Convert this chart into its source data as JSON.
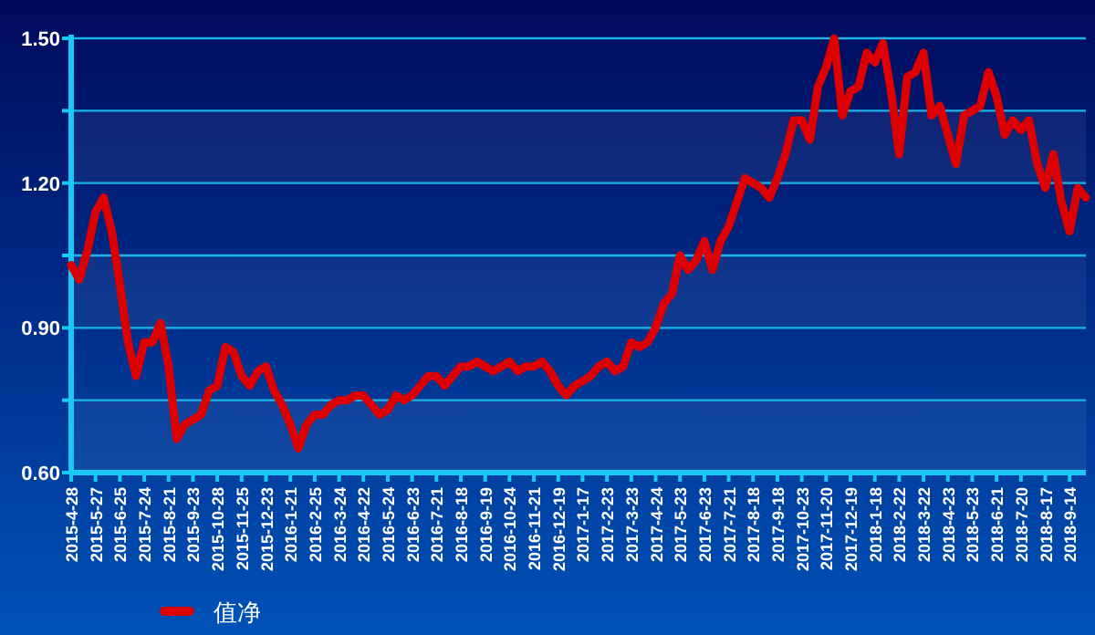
{
  "chart_data": {
    "type": "line",
    "categories": [
      "2015-4-28",
      null,
      null,
      "2015-5-27",
      null,
      null,
      "2015-6-25",
      null,
      null,
      "2015-7-24",
      null,
      null,
      "2015-8-21",
      null,
      null,
      "2015-9-23",
      null,
      null,
      "2015-10-28",
      null,
      null,
      "2015-11-25",
      null,
      null,
      "2015-12-23",
      null,
      null,
      "2016-1-21",
      null,
      null,
      "2016-2-25",
      null,
      null,
      "2016-3-24",
      null,
      null,
      "2016-4-22",
      null,
      null,
      "2016-5-24",
      null,
      null,
      "2016-6-23",
      null,
      null,
      "2016-7-21",
      null,
      null,
      "2016-8-18",
      null,
      null,
      "2016-9-19",
      null,
      null,
      "2016-10-24",
      null,
      null,
      "2016-11-21",
      null,
      null,
      "2016-12-19",
      null,
      null,
      "2017-1-17",
      null,
      null,
      "2017-2-23",
      null,
      null,
      "2017-3-23",
      null,
      null,
      "2017-4-24",
      null,
      null,
      "2017-5-23",
      null,
      null,
      "2017-6-23",
      null,
      null,
      "2017-7-21",
      null,
      null,
      "2017-8-18",
      null,
      null,
      "2017-9-18",
      null,
      null,
      "2017-10-23",
      null,
      null,
      "2017-11-20",
      null,
      null,
      "2017-12-19",
      null,
      null,
      "2018-1-18",
      null,
      null,
      "2018-2-22",
      null,
      null,
      "2018-3-22",
      null,
      null,
      "2018-4-23",
      null,
      null,
      "2018-5-23",
      null,
      null,
      "2018-6-21",
      null,
      null,
      "2018-7-20",
      null,
      null,
      "2018-8-17",
      null,
      null,
      "2018-9-14",
      null,
      null
    ],
    "series": [
      {
        "name": "值净",
        "color": "#dd0000",
        "values": [
          1.03,
          1.0,
          1.06,
          1.14,
          1.17,
          1.1,
          0.99,
          0.87,
          0.8,
          0.87,
          0.87,
          0.91,
          0.82,
          0.67,
          0.7,
          0.71,
          0.72,
          0.77,
          0.78,
          0.86,
          0.85,
          0.8,
          0.78,
          0.81,
          0.82,
          0.77,
          0.74,
          0.7,
          0.65,
          0.7,
          0.72,
          0.72,
          0.74,
          0.75,
          0.75,
          0.76,
          0.76,
          0.74,
          0.72,
          0.73,
          0.76,
          0.75,
          0.76,
          0.78,
          0.8,
          0.8,
          0.78,
          0.8,
          0.82,
          0.82,
          0.83,
          0.82,
          0.81,
          0.82,
          0.83,
          0.81,
          0.82,
          0.82,
          0.83,
          0.81,
          0.78,
          0.76,
          0.78,
          0.79,
          0.8,
          0.82,
          0.83,
          0.81,
          0.82,
          0.87,
          0.86,
          0.87,
          0.9,
          0.95,
          0.97,
          1.05,
          1.02,
          1.04,
          1.08,
          1.02,
          1.08,
          1.11,
          1.16,
          1.21,
          1.2,
          1.19,
          1.17,
          1.21,
          1.26,
          1.33,
          1.33,
          1.29,
          1.4,
          1.44,
          1.5,
          1.34,
          1.39,
          1.4,
          1.47,
          1.45,
          1.49,
          1.39,
          1.26,
          1.42,
          1.43,
          1.47,
          1.34,
          1.36,
          1.3,
          1.24,
          1.34,
          1.35,
          1.36,
          1.43,
          1.38,
          1.3,
          1.33,
          1.31,
          1.33,
          1.24,
          1.19,
          1.26,
          1.16,
          1.1,
          1.19,
          1.17
        ]
      }
    ],
    "ylim": [
      0.6,
      1.5
    ],
    "yticks": [
      {
        "value": 0.6,
        "label": "0.60"
      },
      {
        "value": 0.75,
        "label": null
      },
      {
        "value": 0.9,
        "label": "0.90"
      },
      {
        "value": 1.05,
        "label": null
      },
      {
        "value": 1.2,
        "label": "1.20"
      },
      {
        "value": 1.35,
        "label": null
      },
      {
        "value": 1.5,
        "label": "1.50"
      }
    ],
    "grid": "y",
    "legend": "bottom left",
    "marker": "none",
    "line_style": "solid"
  }
}
